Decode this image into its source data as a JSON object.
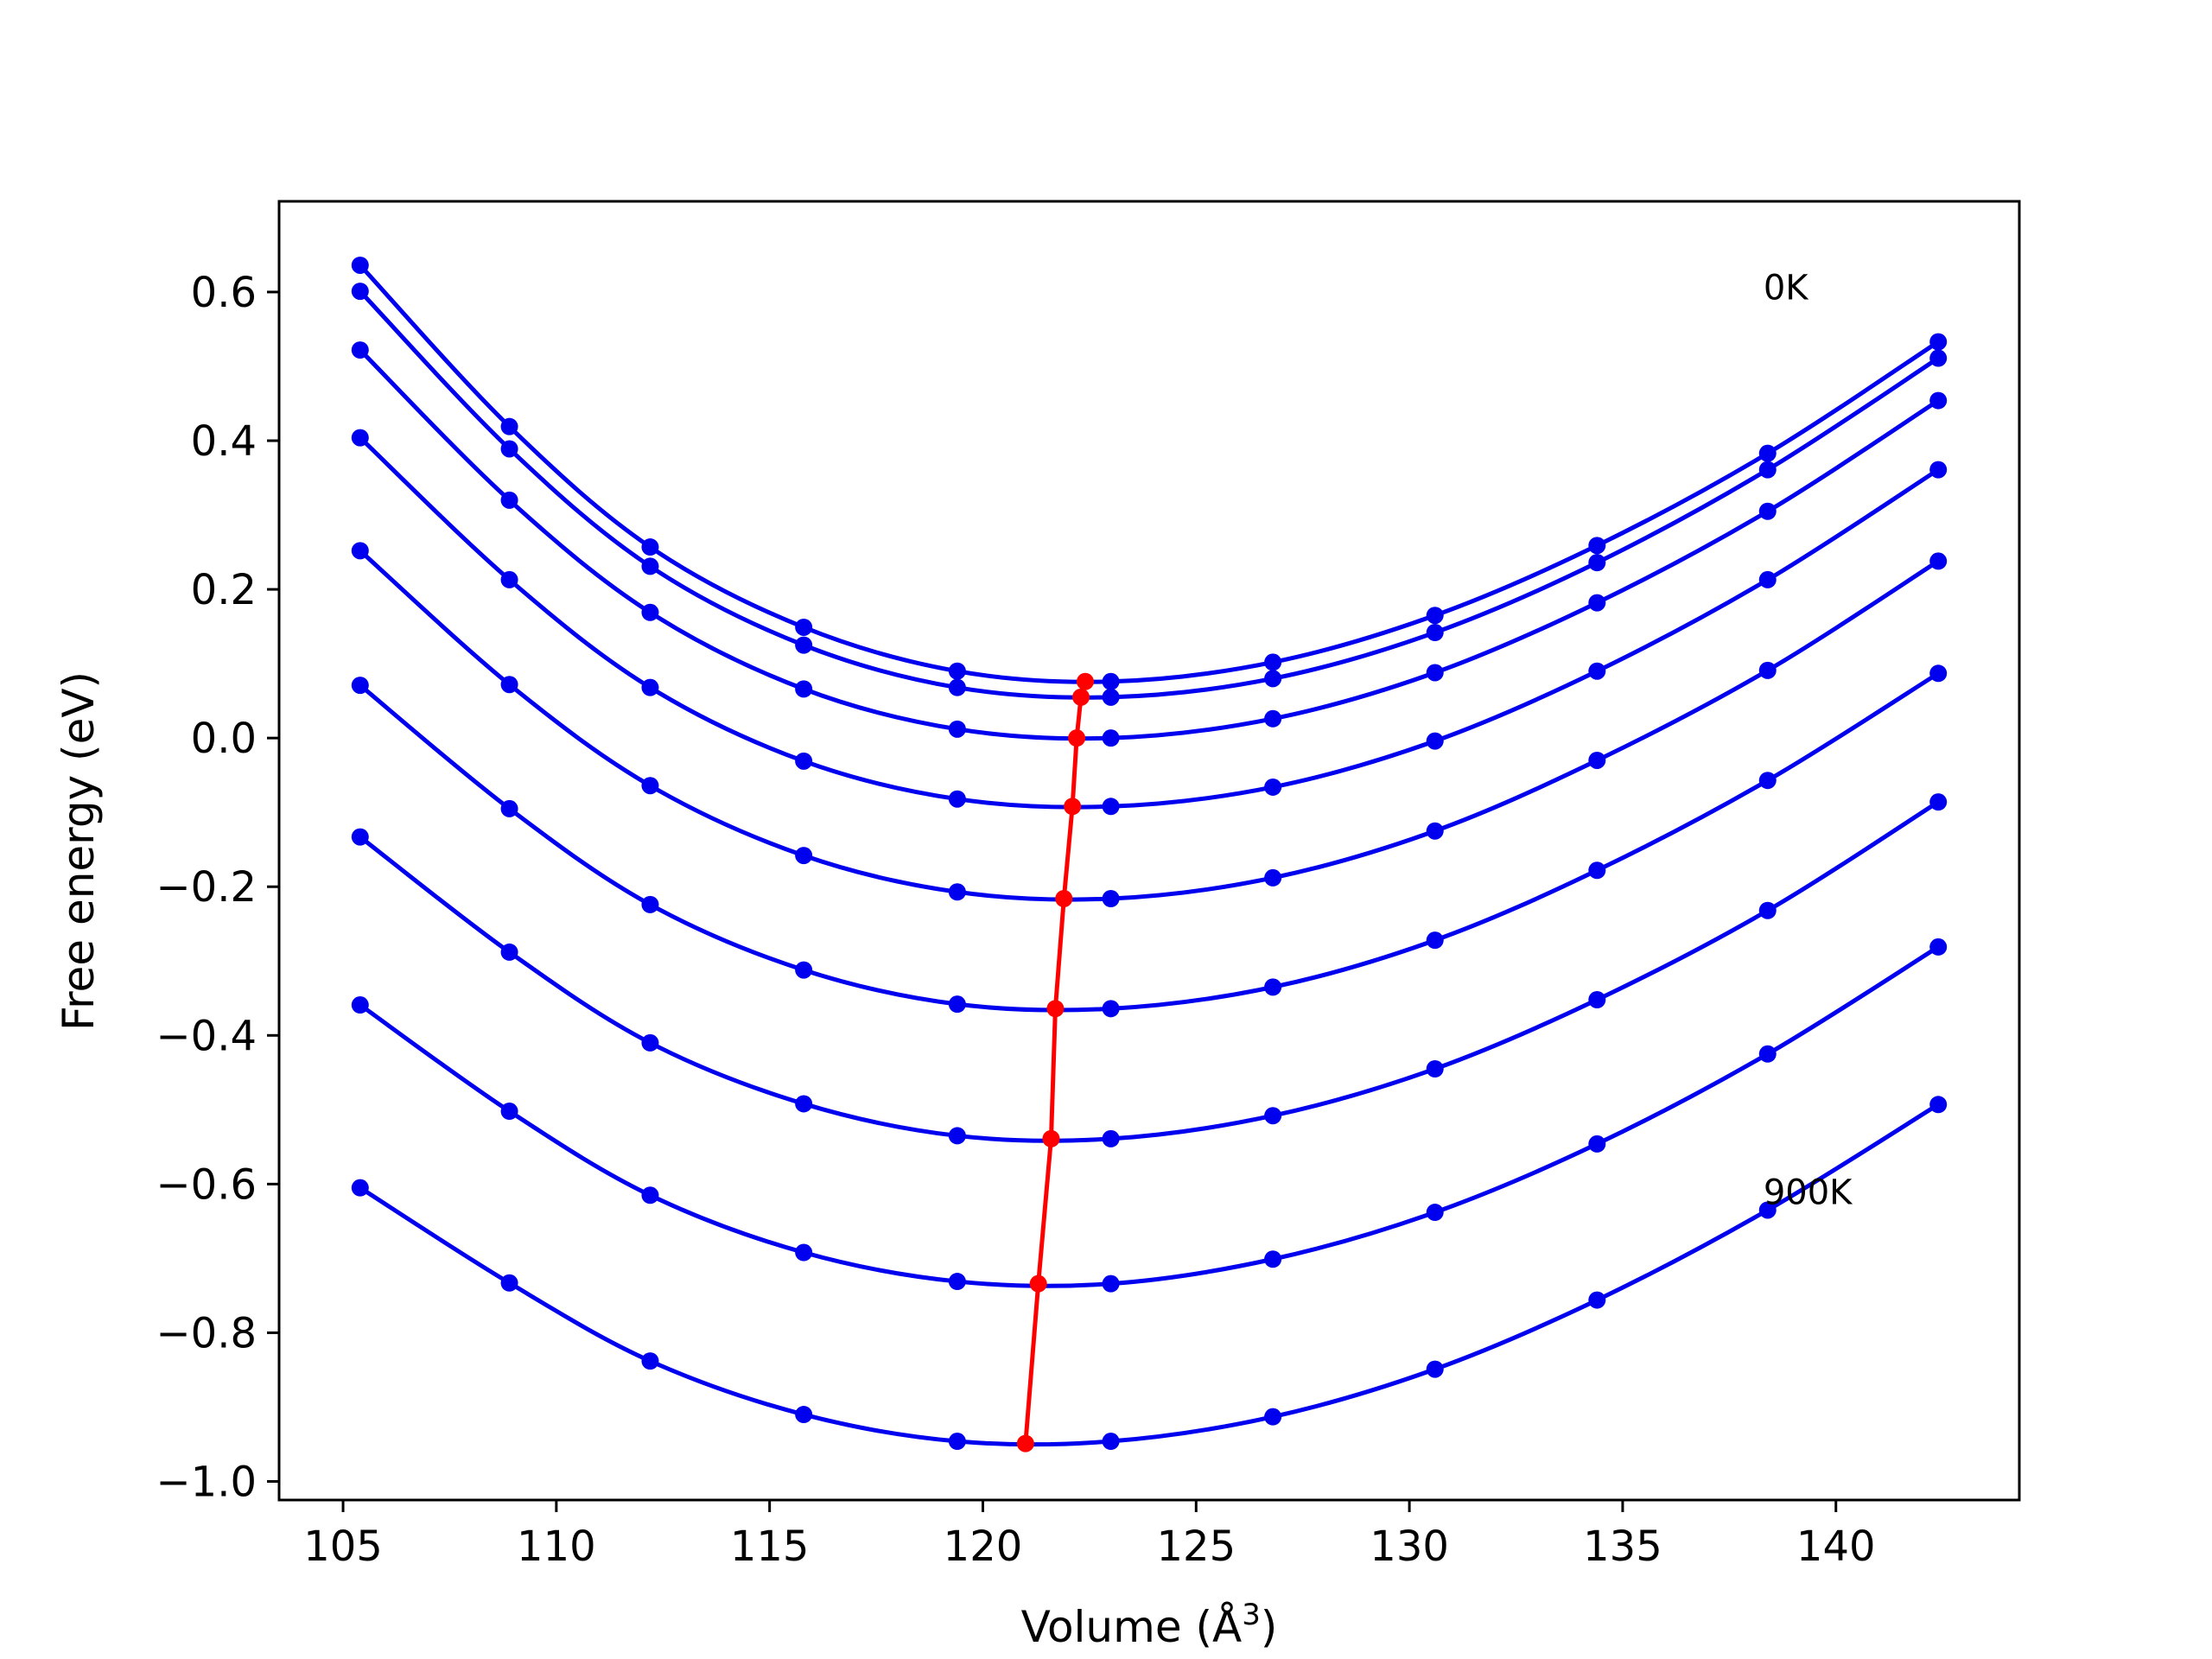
{
  "chart_data": {
    "type": "line",
    "title": "",
    "xlabel": "Volume (Å",
    "xlabel_sup": "3",
    "xlabel_close": ")",
    "ylabel": "Free energy (eV)",
    "xlim": [
      103.5,
      144.3
    ],
    "ylim": [
      -1.025,
      0.722
    ],
    "xticks": [
      105,
      110,
      115,
      120,
      125,
      130,
      135,
      140
    ],
    "xtick_labels": [
      "105",
      "110",
      "115",
      "120",
      "125",
      "130",
      "135",
      "140"
    ],
    "yticks": [
      -1.0,
      -0.8,
      -0.6,
      -0.4,
      -0.2,
      0.0,
      0.2,
      0.4,
      0.6
    ],
    "ytick_labels": [
      "−1.0",
      "−0.8",
      "−0.6",
      "−0.4",
      "−0.2",
      "0.0",
      "0.2",
      "0.4",
      "0.6"
    ],
    "grid": false,
    "legend": "none",
    "annotations": [
      {
        "text": "0K",
        "x": 138.3,
        "y": 0.59
      },
      {
        "text": "900K",
        "x": 138.3,
        "y": -0.627
      }
    ],
    "x": [
      105.4,
      108.9,
      112.2,
      115.8,
      119.4,
      123.0,
      126.8,
      130.6,
      134.4,
      138.4,
      142.4
    ],
    "series_color": "#0000ee",
    "series": [
      {
        "values": [
          0.636,
          0.419,
          0.257,
          0.149,
          0.09,
          0.076,
          0.102,
          0.165,
          0.259,
          0.383,
          0.533
        ]
      },
      {
        "values": [
          0.601,
          0.389,
          0.231,
          0.125,
          0.068,
          0.055,
          0.08,
          0.142,
          0.236,
          0.361,
          0.511
        ]
      },
      {
        "values": [
          0.522,
          0.32,
          0.169,
          0.066,
          0.012,
          0.0,
          0.026,
          0.088,
          0.182,
          0.305,
          0.454
        ]
      },
      {
        "values": [
          0.404,
          0.213,
          0.068,
          -0.031,
          -0.082,
          -0.092,
          -0.066,
          -0.004,
          0.09,
          0.213,
          0.361
        ]
      },
      {
        "values": [
          0.252,
          0.072,
          -0.064,
          -0.158,
          -0.207,
          -0.216,
          -0.188,
          -0.125,
          -0.03,
          0.091,
          0.238
        ]
      },
      {
        "values": [
          0.071,
          -0.095,
          -0.224,
          -0.312,
          -0.358,
          -0.364,
          -0.335,
          -0.272,
          -0.178,
          -0.057,
          0.087
        ]
      },
      {
        "values": [
          -0.133,
          -0.288,
          -0.41,
          -0.492,
          -0.535,
          -0.539,
          -0.508,
          -0.445,
          -0.352,
          -0.232,
          -0.086
        ]
      },
      {
        "values": [
          -0.359,
          -0.502,
          -0.615,
          -0.692,
          -0.731,
          -0.734,
          -0.701,
          -0.638,
          -0.546,
          -0.425,
          -0.281
        ]
      },
      {
        "values": [
          -0.605,
          -0.733,
          -0.838,
          -0.91,
          -0.946,
          -0.946,
          -0.913,
          -0.849,
          -0.756,
          -0.635,
          -0.493
        ]
      }
    ],
    "minima": {
      "color": "#ff0000",
      "x": [
        122.4,
        122.3,
        122.2,
        122.1,
        121.9,
        121.7,
        121.6,
        121.3,
        121.0
      ],
      "y": [
        0.076,
        0.055,
        0.0,
        -0.092,
        -0.216,
        -0.364,
        -0.539,
        -0.734,
        -0.949
      ]
    }
  }
}
